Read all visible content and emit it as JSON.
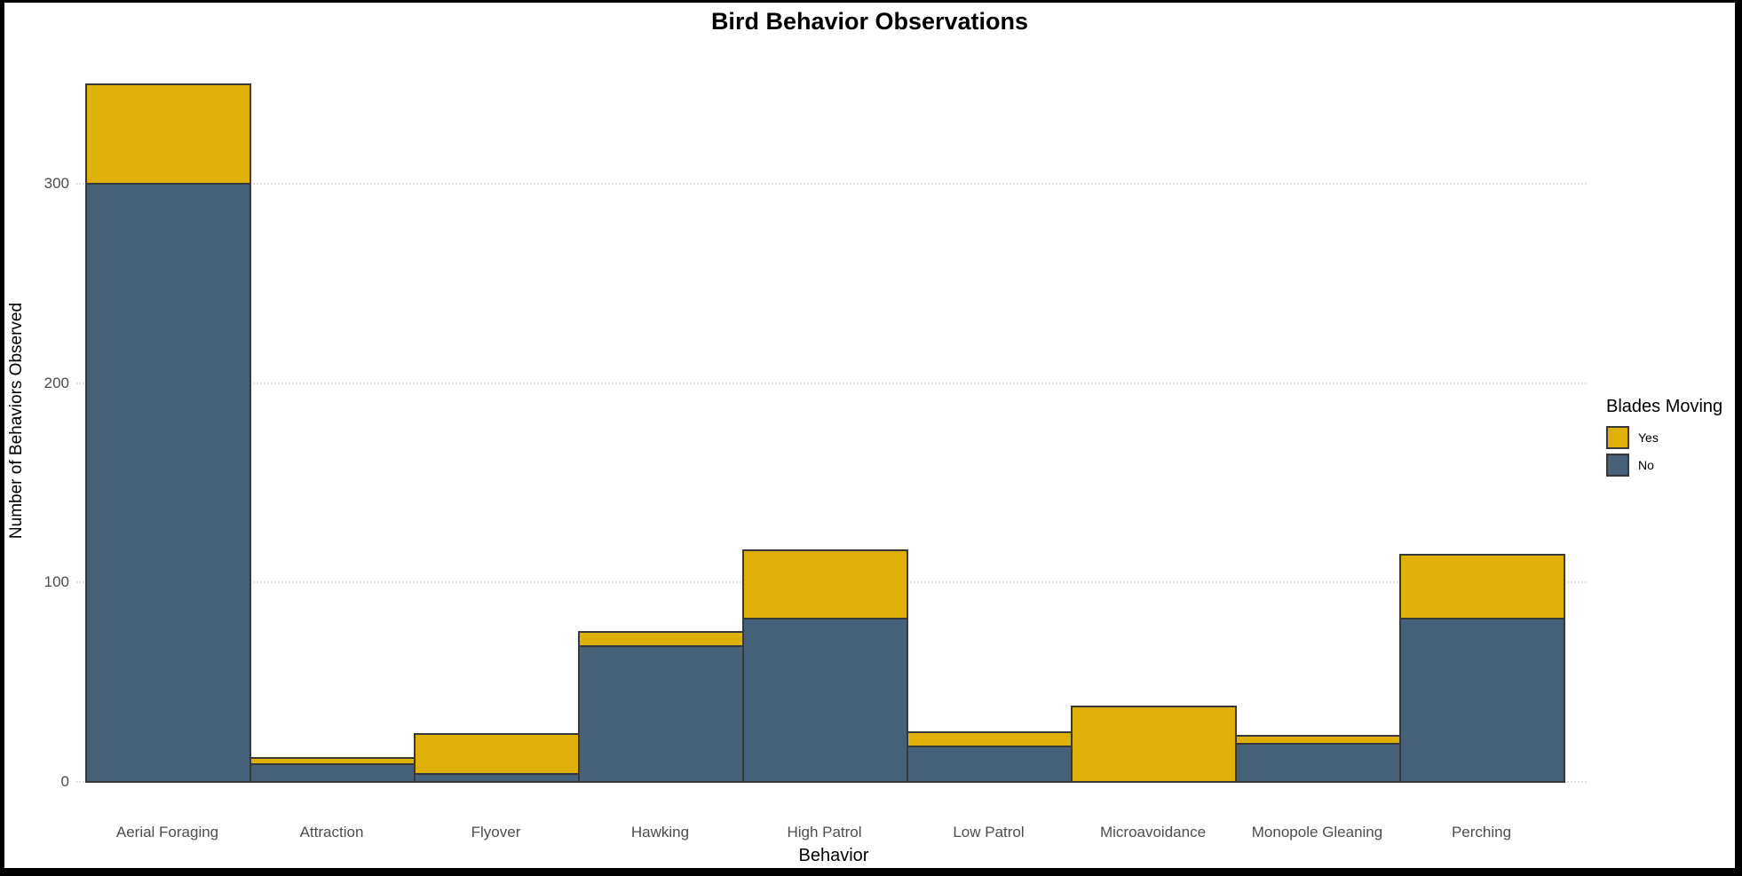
{
  "title": "Bird Behavior Observations",
  "chart_data": {
    "type": "bar",
    "stacked": true,
    "title": "Bird Behavior Observations",
    "xlabel": "Behavior",
    "ylabel": "Number of Behaviors Observed",
    "categories": [
      "Aerial Foraging",
      "Attraction",
      "Flyover",
      "Hawking",
      "High Patrol",
      "Low Patrol",
      "Microavoidance",
      "Monopole Gleaning",
      "Perching"
    ],
    "series": [
      {
        "name": "No",
        "color": "#48617A",
        "values": [
          300,
          9,
          4,
          68,
          82,
          18,
          0,
          19,
          82
        ]
      },
      {
        "name": "Yes",
        "color": "#DFB007",
        "values": [
          50,
          3,
          20,
          7,
          34,
          7,
          38,
          4,
          32
        ]
      }
    ],
    "stack_order_bottom_to_top": [
      "No",
      "Yes"
    ],
    "totals": [
      350,
      12,
      24,
      75,
      116,
      25,
      38,
      23,
      114
    ],
    "yticks": [
      "0",
      "100",
      "200",
      "300"
    ],
    "ylim": [
      0,
      362
    ],
    "grid": "horizontal-dotted",
    "bar_border_color": "#383838",
    "legend": {
      "title": "Blades Moving",
      "position": "right",
      "entries": [
        {
          "label": "Yes",
          "color": "#DFB007"
        },
        {
          "label": "No",
          "color": "#48617A"
        }
      ]
    }
  }
}
